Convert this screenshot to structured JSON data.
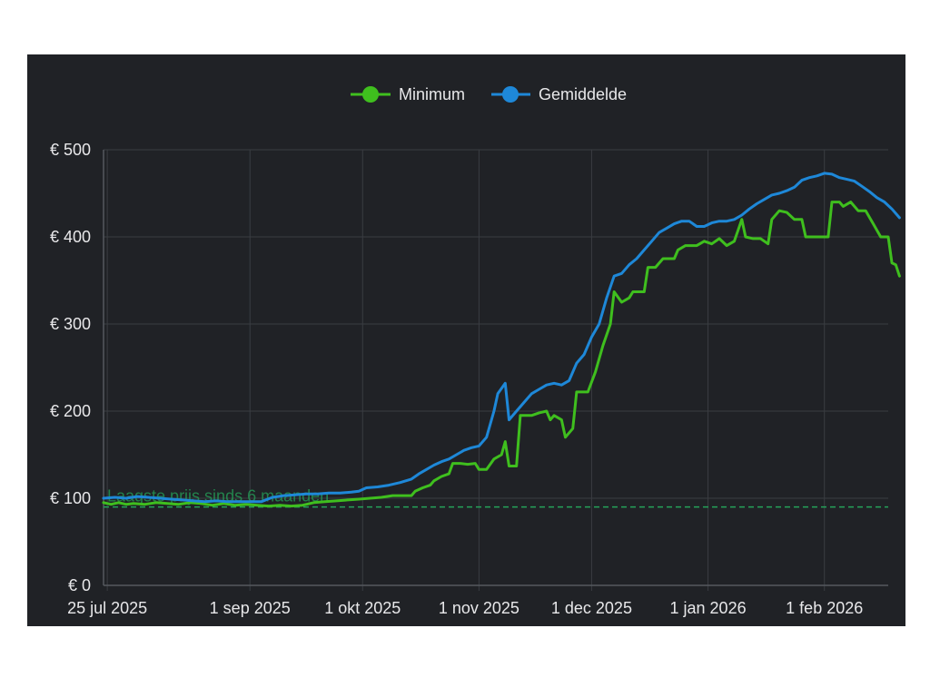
{
  "chart_data": {
    "type": "line",
    "title": "",
    "xlabel": "",
    "ylabel": "",
    "x_ticks": [
      "25 jul 2025",
      "1 sep 2025",
      "1 okt 2025",
      "1 nov 2025",
      "1 dec 2025",
      "1 jan 2026",
      "1 feb 2026"
    ],
    "x_tick_dates": [
      "2025-07-25",
      "2025-09-01",
      "2025-10-01",
      "2025-11-01",
      "2025-12-01",
      "2026-01-01",
      "2026-02-01"
    ],
    "xlim": [
      "2025-07-24",
      "2026-02-18"
    ],
    "y_ticks": [
      "€ 0",
      "€ 100",
      "€ 200",
      "€ 300",
      "€ 400",
      "€ 500"
    ],
    "ylim": [
      0,
      500
    ],
    "grid": true,
    "legend_position": "top",
    "series": [
      {
        "name": "Minimum",
        "color": "#3fbf1e",
        "points": [
          [
            "2025-07-24",
            95
          ],
          [
            "2025-07-26",
            93
          ],
          [
            "2025-07-28",
            95
          ],
          [
            "2025-07-30",
            93
          ],
          [
            "2025-08-01",
            94
          ],
          [
            "2025-08-04",
            93
          ],
          [
            "2025-08-07",
            95
          ],
          [
            "2025-08-10",
            94
          ],
          [
            "2025-08-13",
            93
          ],
          [
            "2025-08-16",
            95
          ],
          [
            "2025-08-19",
            94
          ],
          [
            "2025-08-22",
            92
          ],
          [
            "2025-08-25",
            94
          ],
          [
            "2025-08-28",
            92
          ],
          [
            "2025-08-31",
            93
          ],
          [
            "2025-09-03",
            92
          ],
          [
            "2025-09-06",
            91
          ],
          [
            "2025-09-09",
            92
          ],
          [
            "2025-09-12",
            91
          ],
          [
            "2025-09-15",
            92
          ],
          [
            "2025-09-18",
            95
          ],
          [
            "2025-09-21",
            96
          ],
          [
            "2025-09-24",
            97
          ],
          [
            "2025-09-27",
            98
          ],
          [
            "2025-09-30",
            99
          ],
          [
            "2025-10-03",
            100
          ],
          [
            "2025-10-06",
            101
          ],
          [
            "2025-10-09",
            103
          ],
          [
            "2025-10-12",
            103
          ],
          [
            "2025-10-14",
            103
          ],
          [
            "2025-10-15",
            108
          ],
          [
            "2025-10-17",
            112
          ],
          [
            "2025-10-19",
            115
          ],
          [
            "2025-10-20",
            120
          ],
          [
            "2025-10-22",
            125
          ],
          [
            "2025-10-24",
            128
          ],
          [
            "2025-10-25",
            140
          ],
          [
            "2025-10-27",
            140
          ],
          [
            "2025-10-29",
            139
          ],
          [
            "2025-10-31",
            140
          ],
          [
            "2025-11-01",
            133
          ],
          [
            "2025-11-03",
            133
          ],
          [
            "2025-11-05",
            145
          ],
          [
            "2025-11-07",
            150
          ],
          [
            "2025-11-08",
            165
          ],
          [
            "2025-11-09",
            137
          ],
          [
            "2025-11-11",
            137
          ],
          [
            "2025-11-12",
            195
          ],
          [
            "2025-11-15",
            195
          ],
          [
            "2025-11-17",
            198
          ],
          [
            "2025-11-19",
            200
          ],
          [
            "2025-11-20",
            190
          ],
          [
            "2025-11-21",
            195
          ],
          [
            "2025-11-23",
            190
          ],
          [
            "2025-11-24",
            170
          ],
          [
            "2025-11-26",
            180
          ],
          [
            "2025-11-27",
            222
          ],
          [
            "2025-11-30",
            222
          ],
          [
            "2025-12-02",
            245
          ],
          [
            "2025-12-04",
            275
          ],
          [
            "2025-12-06",
            300
          ],
          [
            "2025-12-07",
            337
          ],
          [
            "2025-12-09",
            325
          ],
          [
            "2025-12-11",
            330
          ],
          [
            "2025-12-12",
            337
          ],
          [
            "2025-12-15",
            337
          ],
          [
            "2025-12-16",
            365
          ],
          [
            "2025-12-18",
            365
          ],
          [
            "2025-12-20",
            375
          ],
          [
            "2025-12-23",
            375
          ],
          [
            "2025-12-24",
            385
          ],
          [
            "2025-12-26",
            390
          ],
          [
            "2025-12-29",
            390
          ],
          [
            "2025-12-31",
            395
          ],
          [
            "2026-01-02",
            392
          ],
          [
            "2026-01-04",
            398
          ],
          [
            "2026-01-06",
            390
          ],
          [
            "2026-01-08",
            395
          ],
          [
            "2026-01-10",
            420
          ],
          [
            "2026-01-11",
            400
          ],
          [
            "2026-01-13",
            398
          ],
          [
            "2026-01-15",
            398
          ],
          [
            "2026-01-17",
            392
          ],
          [
            "2026-01-18",
            420
          ],
          [
            "2026-01-20",
            430
          ],
          [
            "2026-01-22",
            428
          ],
          [
            "2026-01-24",
            420
          ],
          [
            "2026-01-26",
            420
          ],
          [
            "2026-01-27",
            400
          ],
          [
            "2026-02-02",
            400
          ],
          [
            "2026-02-03",
            440
          ],
          [
            "2026-02-05",
            440
          ],
          [
            "2026-02-06",
            435
          ],
          [
            "2026-02-08",
            440
          ],
          [
            "2026-02-10",
            430
          ],
          [
            "2026-02-12",
            430
          ],
          [
            "2026-02-14",
            415
          ],
          [
            "2026-02-16",
            400
          ],
          [
            "2026-02-18",
            400
          ],
          [
            "2026-02-19",
            370
          ],
          [
            "2026-02-20",
            368
          ],
          [
            "2026-02-21",
            355
          ]
        ]
      },
      {
        "name": "Gemiddelde",
        "color": "#1e88d8",
        "points": [
          [
            "2025-07-24",
            100
          ],
          [
            "2025-07-27",
            101
          ],
          [
            "2025-07-30",
            100
          ],
          [
            "2025-08-02",
            102
          ],
          [
            "2025-08-05",
            101
          ],
          [
            "2025-08-08",
            100
          ],
          [
            "2025-08-11",
            99
          ],
          [
            "2025-08-14",
            98
          ],
          [
            "2025-08-17",
            97
          ],
          [
            "2025-08-20",
            96
          ],
          [
            "2025-08-23",
            97
          ],
          [
            "2025-08-26",
            96
          ],
          [
            "2025-08-29",
            96
          ],
          [
            "2025-09-01",
            96
          ],
          [
            "2025-09-04",
            96
          ],
          [
            "2025-09-07",
            101
          ],
          [
            "2025-09-10",
            103
          ],
          [
            "2025-09-13",
            104
          ],
          [
            "2025-09-16",
            105
          ],
          [
            "2025-09-19",
            105
          ],
          [
            "2025-09-22",
            106
          ],
          [
            "2025-09-25",
            106
          ],
          [
            "2025-09-28",
            107
          ],
          [
            "2025-09-30",
            108
          ],
          [
            "2025-10-02",
            112
          ],
          [
            "2025-10-05",
            113
          ],
          [
            "2025-10-08",
            115
          ],
          [
            "2025-10-11",
            118
          ],
          [
            "2025-10-14",
            122
          ],
          [
            "2025-10-16",
            128
          ],
          [
            "2025-10-18",
            133
          ],
          [
            "2025-10-20",
            138
          ],
          [
            "2025-10-22",
            142
          ],
          [
            "2025-10-24",
            145
          ],
          [
            "2025-10-26",
            150
          ],
          [
            "2025-10-28",
            155
          ],
          [
            "2025-10-30",
            158
          ],
          [
            "2025-11-01",
            160
          ],
          [
            "2025-11-03",
            170
          ],
          [
            "2025-11-05",
            200
          ],
          [
            "2025-11-06",
            220
          ],
          [
            "2025-11-08",
            232
          ],
          [
            "2025-11-09",
            190
          ],
          [
            "2025-11-11",
            200
          ],
          [
            "2025-11-13",
            210
          ],
          [
            "2025-11-15",
            220
          ],
          [
            "2025-11-17",
            225
          ],
          [
            "2025-11-19",
            230
          ],
          [
            "2025-11-21",
            232
          ],
          [
            "2025-11-23",
            230
          ],
          [
            "2025-11-25",
            235
          ],
          [
            "2025-11-27",
            255
          ],
          [
            "2025-11-29",
            265
          ],
          [
            "2025-12-01",
            285
          ],
          [
            "2025-12-03",
            300
          ],
          [
            "2025-12-05",
            330
          ],
          [
            "2025-12-07",
            355
          ],
          [
            "2025-12-09",
            358
          ],
          [
            "2025-12-11",
            368
          ],
          [
            "2025-12-13",
            375
          ],
          [
            "2025-12-15",
            385
          ],
          [
            "2025-12-17",
            395
          ],
          [
            "2025-12-19",
            405
          ],
          [
            "2025-12-21",
            410
          ],
          [
            "2025-12-23",
            415
          ],
          [
            "2025-12-25",
            418
          ],
          [
            "2025-12-27",
            418
          ],
          [
            "2025-12-29",
            412
          ],
          [
            "2025-12-31",
            412
          ],
          [
            "2026-01-02",
            416
          ],
          [
            "2026-01-04",
            418
          ],
          [
            "2026-01-06",
            418
          ],
          [
            "2026-01-08",
            420
          ],
          [
            "2026-01-10",
            425
          ],
          [
            "2026-01-12",
            432
          ],
          [
            "2026-01-14",
            438
          ],
          [
            "2026-01-16",
            443
          ],
          [
            "2026-01-18",
            448
          ],
          [
            "2026-01-20",
            450
          ],
          [
            "2026-01-22",
            453
          ],
          [
            "2026-01-24",
            457
          ],
          [
            "2026-01-26",
            465
          ],
          [
            "2026-01-28",
            468
          ],
          [
            "2026-01-30",
            470
          ],
          [
            "2026-02-01",
            473
          ],
          [
            "2026-02-03",
            472
          ],
          [
            "2026-02-05",
            468
          ],
          [
            "2026-02-07",
            466
          ],
          [
            "2026-02-09",
            464
          ],
          [
            "2026-02-11",
            458
          ],
          [
            "2026-02-13",
            452
          ],
          [
            "2026-02-15",
            445
          ],
          [
            "2026-02-17",
            440
          ],
          [
            "2026-02-19",
            432
          ],
          [
            "2026-02-21",
            422
          ]
        ]
      }
    ],
    "reference_line": {
      "label": "Laagste prijs sinds 6 maanden",
      "value": 90,
      "color": "#24a35a"
    }
  }
}
